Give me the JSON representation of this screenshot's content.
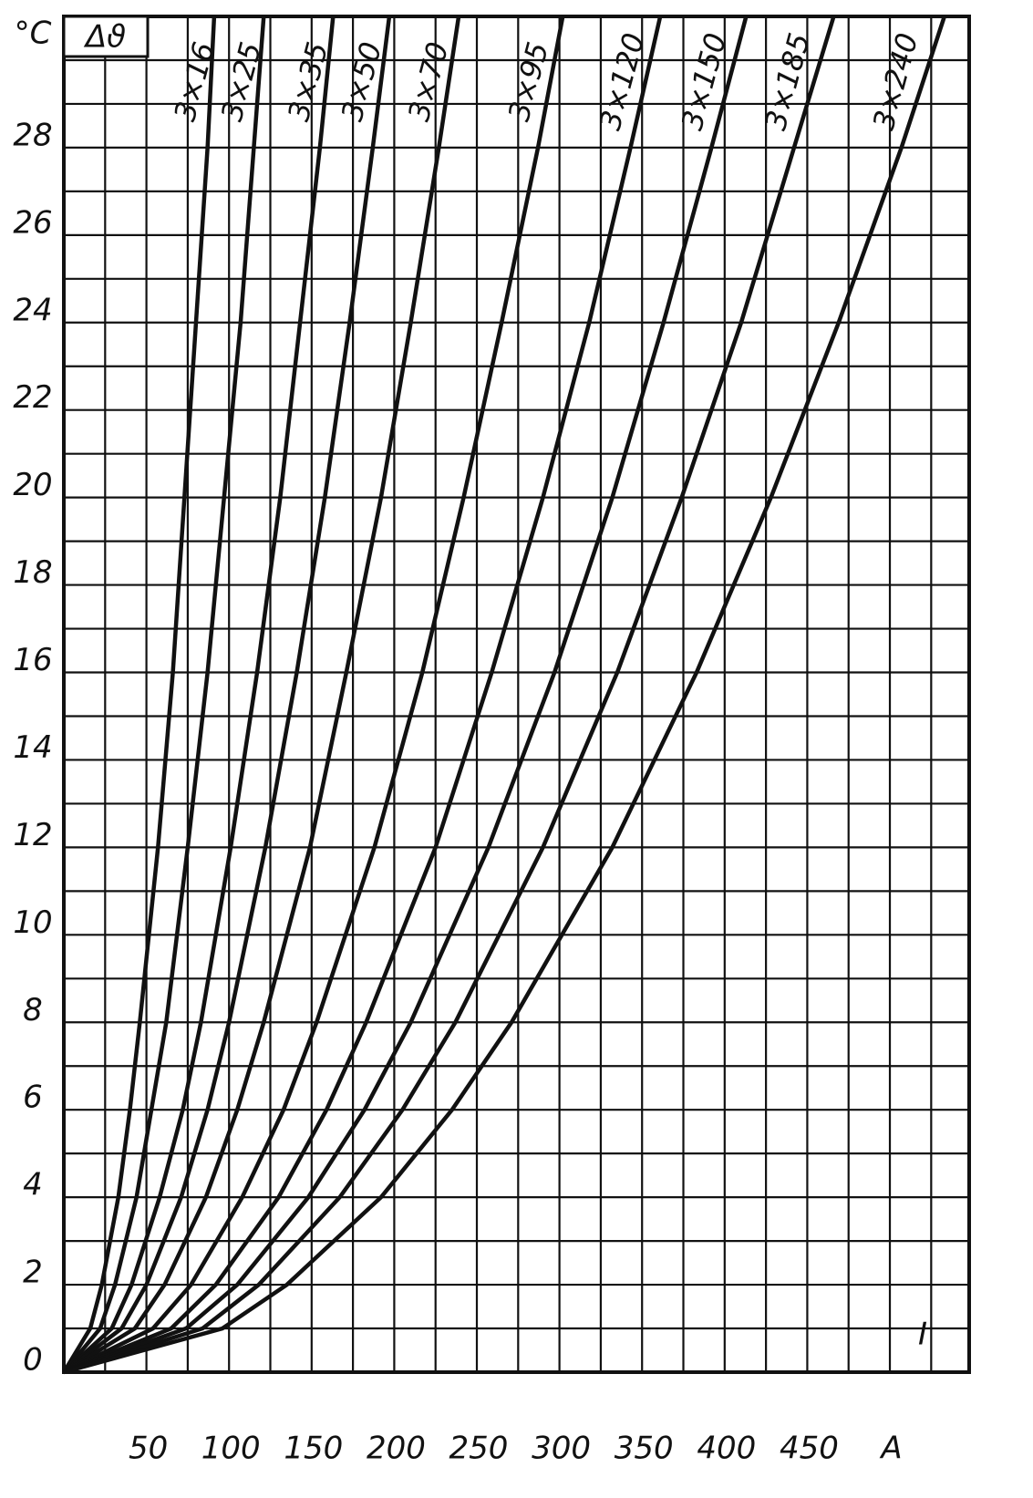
{
  "chart_data": {
    "type": "line",
    "x_label": "I",
    "x_unit": "A",
    "y_label": "Δϑ",
    "y_unit": "°C",
    "xlim": [
      0,
      548
    ],
    "ylim": [
      0,
      31
    ],
    "xticks": [
      50,
      100,
      150,
      200,
      250,
      300,
      350,
      400,
      450
    ],
    "yticks": [
      0,
      2,
      4,
      6,
      8,
      10,
      12,
      14,
      16,
      18,
      20,
      22,
      24,
      26,
      28
    ],
    "xgrid": [
      0,
      25,
      50,
      75,
      100,
      125,
      150,
      175,
      200,
      225,
      250,
      275,
      300,
      325,
      350,
      375,
      400,
      425,
      450,
      475,
      500,
      525
    ],
    "ygrid": [
      0,
      1,
      2,
      3,
      4,
      5,
      6,
      7,
      8,
      9,
      10,
      11,
      12,
      13,
      14,
      15,
      16,
      17,
      18,
      19,
      20,
      21,
      22,
      23,
      24,
      25,
      26,
      27,
      28,
      29,
      30,
      31
    ],
    "series": [
      {
        "name": "3×16",
        "color": "#111111",
        "x": [
          0,
          16,
          23,
          33,
          40,
          46,
          57,
          66,
          73,
          80,
          87,
          91
        ],
        "values": [
          0,
          1,
          2,
          4,
          6,
          8,
          12,
          16,
          20,
          24,
          28,
          31
        ]
      },
      {
        "name": "3×25",
        "color": "#111111",
        "x": [
          0,
          22,
          31,
          44,
          53,
          62,
          75,
          87,
          97,
          107,
          115,
          121
        ],
        "values": [
          0,
          1,
          2,
          4,
          6,
          8,
          12,
          16,
          20,
          24,
          28,
          31
        ]
      },
      {
        "name": "3×35",
        "color": "#111111",
        "x": [
          0,
          29,
          41,
          58,
          72,
          83,
          101,
          117,
          131,
          143,
          155,
          163
        ],
        "values": [
          0,
          1,
          2,
          4,
          6,
          8,
          12,
          16,
          20,
          24,
          28,
          31
        ]
      },
      {
        "name": "3×50",
        "color": "#111111",
        "x": [
          0,
          35,
          50,
          71,
          87,
          100,
          122,
          141,
          158,
          173,
          187,
          197
        ],
        "values": [
          0,
          1,
          2,
          4,
          6,
          8,
          12,
          16,
          20,
          24,
          28,
          31
        ]
      },
      {
        "name": "3×70",
        "color": "#111111",
        "x": [
          0,
          43,
          61,
          86,
          105,
          121,
          149,
          171,
          192,
          210,
          227,
          239
        ],
        "values": [
          0,
          1,
          2,
          4,
          6,
          8,
          12,
          16,
          20,
          24,
          28,
          31
        ]
      },
      {
        "name": "3×95",
        "color": "#111111",
        "x": [
          0,
          54,
          77,
          108,
          133,
          153,
          188,
          217,
          242,
          265,
          287,
          302
        ],
        "values": [
          0,
          1,
          2,
          4,
          6,
          8,
          12,
          16,
          20,
          24,
          28,
          31
        ]
      },
      {
        "name": "3×120",
        "color": "#111111",
        "x": [
          0,
          65,
          92,
          130,
          159,
          183,
          225,
          259,
          290,
          318,
          343,
          361
        ],
        "values": [
          0,
          1,
          2,
          4,
          6,
          8,
          12,
          16,
          20,
          24,
          28,
          31
        ]
      },
      {
        "name": "3×150",
        "color": "#111111",
        "x": [
          0,
          74,
          105,
          148,
          182,
          210,
          257,
          297,
          332,
          363,
          392,
          413
        ],
        "values": [
          0,
          1,
          2,
          4,
          6,
          8,
          12,
          16,
          20,
          24,
          28,
          31
        ]
      },
      {
        "name": "3×185",
        "color": "#111111",
        "x": [
          0,
          84,
          118,
          167,
          205,
          237,
          290,
          335,
          374,
          410,
          442,
          466
        ],
        "values": [
          0,
          1,
          2,
          4,
          6,
          8,
          12,
          16,
          20,
          24,
          28,
          31
        ]
      },
      {
        "name": "3×240",
        "color": "#111111",
        "x": [
          0,
          96,
          135,
          192,
          235,
          271,
          332,
          383,
          428,
          469,
          507,
          533
        ],
        "values": [
          0,
          1,
          2,
          4,
          6,
          8,
          12,
          16,
          20,
          24,
          28,
          31
        ]
      }
    ]
  }
}
